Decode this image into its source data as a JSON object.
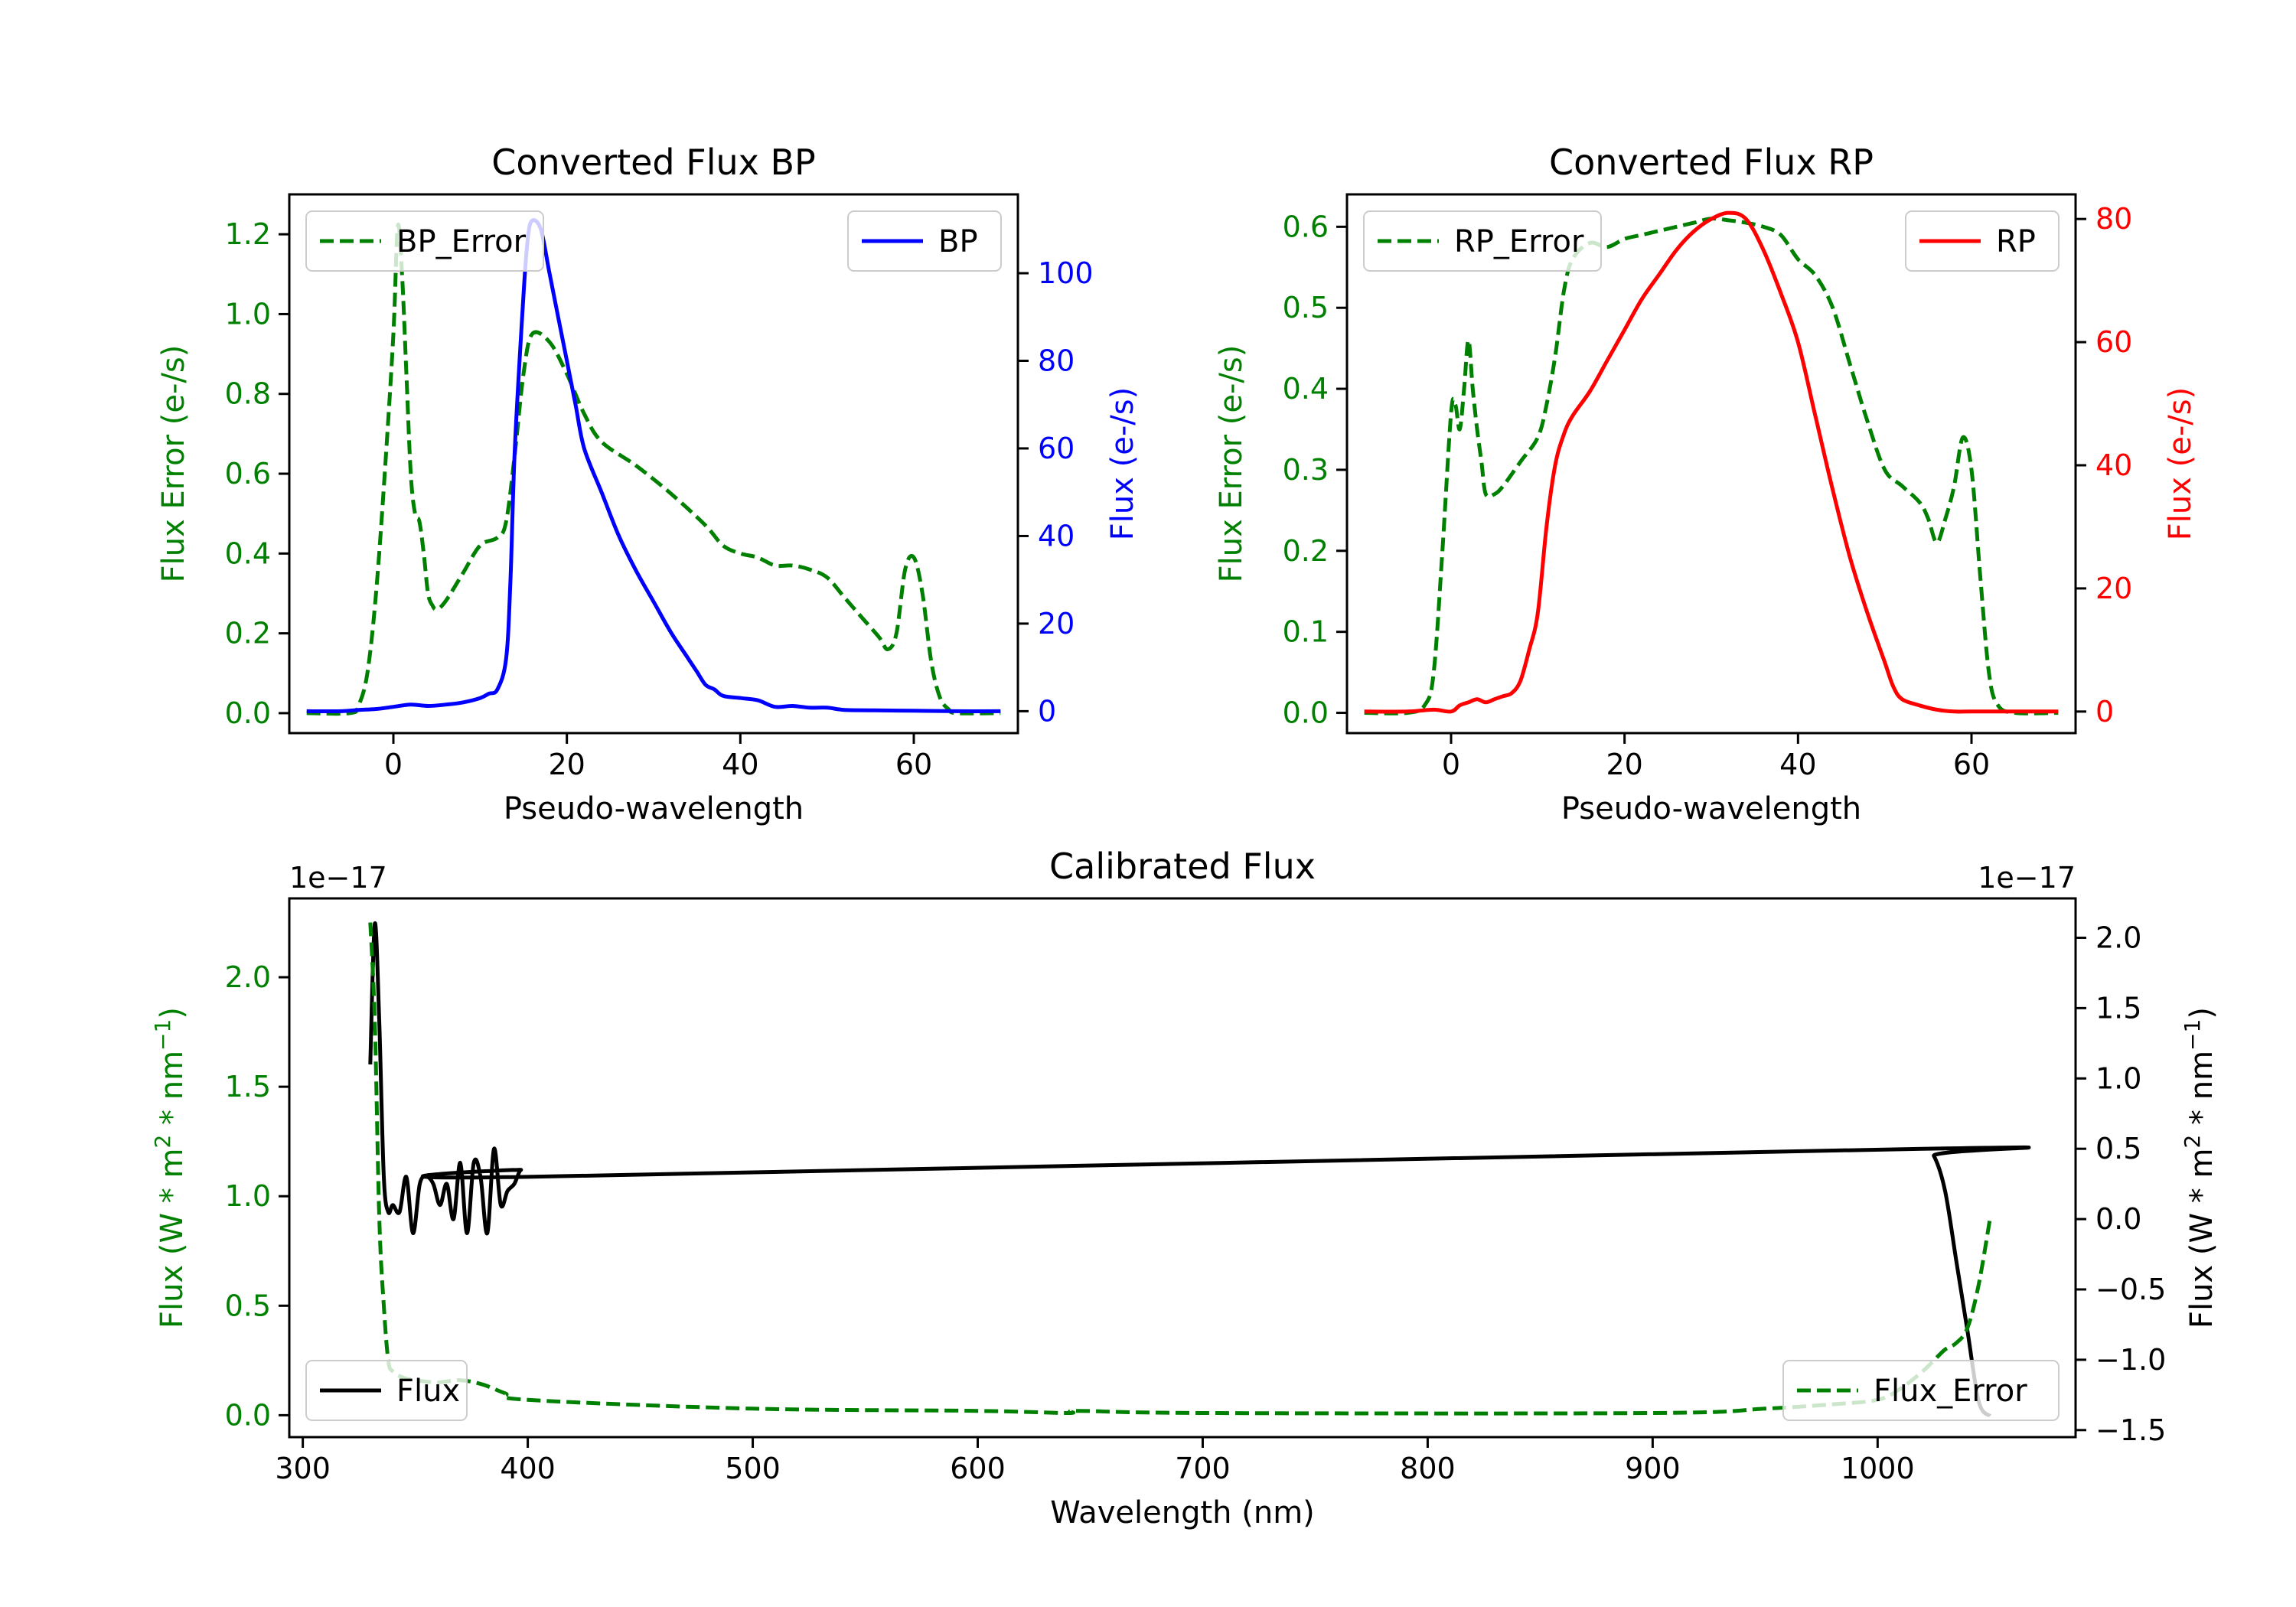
{
  "chart_data": [
    {
      "type": "line",
      "title": "Converted Flux BP",
      "xlabel": "Pseudo-wavelength",
      "ylabel_left": "Flux Error (e-/s)",
      "ylabel_right": "Flux (e-/s)",
      "xlim": [
        -12,
        72
      ],
      "ylim_left": [
        -0.05,
        1.3
      ],
      "ylim_right": [
        -5,
        118
      ],
      "x_ticks": [
        0,
        20,
        40,
        60
      ],
      "y_left_ticks": [
        0.0,
        0.2,
        0.4,
        0.6,
        0.8,
        1.0,
        1.2
      ],
      "y_right_ticks": [
        0,
        20,
        40,
        60,
        80,
        100
      ],
      "legend_left": "BP_Error",
      "legend_right": "BP",
      "colors": {
        "left_axis": "#008000",
        "right_axis": "#0000ff",
        "error": "#008000",
        "flux": "#0000ff"
      },
      "series": [
        {
          "name": "BP_Error",
          "axis": "left",
          "style": "dashed",
          "color": "#008000",
          "x": [
            -10,
            -5,
            -4,
            -3,
            -2,
            -1,
            0,
            0.5,
            1,
            1.5,
            2,
            2.5,
            3,
            3.5,
            4,
            4.5,
            5,
            6,
            8,
            10,
            12,
            13,
            14,
            15,
            16,
            18,
            20,
            22,
            24,
            28,
            32,
            36,
            38,
            40,
            42,
            44,
            46,
            48,
            50,
            52,
            54,
            56,
            57,
            58,
            59,
            60,
            61,
            62,
            63,
            64,
            65,
            70
          ],
          "y": [
            0.0,
            0.0,
            0.02,
            0.1,
            0.3,
            0.6,
            0.95,
            1.22,
            1.1,
            0.85,
            0.6,
            0.5,
            0.48,
            0.4,
            0.3,
            0.27,
            0.26,
            0.28,
            0.35,
            0.42,
            0.44,
            0.48,
            0.65,
            0.85,
            0.95,
            0.93,
            0.85,
            0.75,
            0.68,
            0.62,
            0.55,
            0.47,
            0.42,
            0.4,
            0.39,
            0.37,
            0.37,
            0.36,
            0.34,
            0.29,
            0.24,
            0.19,
            0.16,
            0.2,
            0.36,
            0.39,
            0.3,
            0.13,
            0.04,
            0.01,
            0.0,
            0.0
          ]
        },
        {
          "name": "BP",
          "axis": "right",
          "style": "solid",
          "color": "#0000ff",
          "x": [
            -10,
            -6,
            -4,
            -2,
            0,
            2,
            4,
            6,
            8,
            10,
            11,
            12,
            13,
            13.5,
            14,
            15,
            15.5,
            16,
            17,
            18,
            19,
            20,
            21,
            22,
            24,
            26,
            28,
            30,
            32,
            34,
            35,
            36,
            37,
            38,
            40,
            42,
            44,
            46,
            48,
            50,
            52,
            55,
            60,
            65,
            70
          ],
          "y": [
            0,
            0,
            0.3,
            0.5,
            1,
            1.5,
            1.2,
            1.5,
            2,
            3,
            4,
            5,
            12,
            30,
            60,
            95,
            108,
            112,
            110,
            100,
            90,
            80,
            70,
            60,
            50,
            40,
            32,
            25,
            18,
            12,
            9,
            6,
            5,
            3.5,
            3,
            2.5,
            1,
            1.2,
            0.8,
            0.8,
            0.3,
            0.2,
            0.1,
            0,
            0
          ]
        }
      ]
    },
    {
      "type": "line",
      "title": "Converted Flux RP",
      "xlabel": "Pseudo-wavelength",
      "ylabel_left": "Flux Error (e-/s)",
      "ylabel_right": "Flux (e-/s)",
      "xlim": [
        -12,
        72
      ],
      "ylim_left": [
        -0.025,
        0.64
      ],
      "ylim_right": [
        -3.5,
        84
      ],
      "x_ticks": [
        0,
        20,
        40,
        60
      ],
      "y_left_ticks": [
        0.0,
        0.1,
        0.2,
        0.3,
        0.4,
        0.5,
        0.6
      ],
      "y_right_ticks": [
        0,
        20,
        40,
        60,
        80
      ],
      "legend_left": "RP_Error",
      "legend_right": "RP",
      "colors": {
        "left_axis": "#008000",
        "right_axis": "#ff0000",
        "error": "#008000",
        "flux": "#ff0000"
      },
      "series": [
        {
          "name": "RP_Error",
          "axis": "left",
          "style": "dashed",
          "color": "#008000",
          "x": [
            -10,
            -5,
            -3,
            -2,
            -1,
            0,
            0.5,
            1,
            1.5,
            2,
            2.5,
            3,
            3.5,
            4,
            5,
            6,
            8,
            10,
            11,
            12,
            13,
            14,
            16,
            18,
            20,
            22,
            24,
            26,
            28,
            30,
            32,
            34,
            36,
            38,
            40,
            42,
            44,
            46,
            48,
            50,
            52,
            54,
            55,
            56,
            57,
            58,
            59,
            60,
            61,
            62,
            63,
            65,
            70
          ],
          "y": [
            0.0,
            0.0,
            0.01,
            0.05,
            0.2,
            0.37,
            0.38,
            0.35,
            0.4,
            0.46,
            0.4,
            0.35,
            0.31,
            0.27,
            0.27,
            0.28,
            0.31,
            0.34,
            0.38,
            0.44,
            0.52,
            0.56,
            0.58,
            0.575,
            0.585,
            0.59,
            0.595,
            0.6,
            0.605,
            0.61,
            0.608,
            0.605,
            0.6,
            0.59,
            0.56,
            0.54,
            0.5,
            0.43,
            0.36,
            0.3,
            0.28,
            0.26,
            0.24,
            0.21,
            0.24,
            0.28,
            0.34,
            0.3,
            0.17,
            0.05,
            0.01,
            0.0,
            0.0
          ]
        },
        {
          "name": "RP",
          "axis": "right",
          "style": "solid",
          "color": "#ff0000",
          "x": [
            -10,
            -5,
            -2,
            0,
            1,
            2,
            3,
            4,
            5,
            6,
            7,
            8,
            9,
            10,
            11,
            12,
            13,
            14,
            16,
            18,
            20,
            22,
            24,
            26,
            28,
            30,
            32,
            34,
            36,
            38,
            40,
            42,
            44,
            46,
            48,
            50,
            51,
            52,
            54,
            56,
            58,
            60,
            65,
            70
          ],
          "y": [
            0,
            0,
            0.3,
            0,
            1.0,
            1.5,
            2.0,
            1.5,
            2.0,
            2.5,
            3,
            5,
            10,
            16,
            30,
            40,
            45,
            48,
            52,
            57,
            62,
            67,
            71,
            75,
            78,
            80,
            81,
            80,
            75,
            68,
            60,
            48,
            36,
            25,
            16,
            8,
            4,
            2,
            1,
            0.3,
            0,
            0,
            0,
            0
          ]
        }
      ]
    },
    {
      "type": "line",
      "title": "Calibrated Flux",
      "xlabel": "Wavelength (nm)",
      "ylabel_left": "Flux (W * m",
      "ylabel_left_unit": "2",
      "ylabel_left_mid": " * nm",
      "ylabel_left_exp": "−1",
      "ylabel_left_end": ")",
      "offset_left": "1e−17",
      "offset_right": "1e−17",
      "xlim": [
        294,
        1088
      ],
      "ylim_left": [
        -0.1,
        2.36
      ],
      "ylim_right": [
        -1.55,
        2.28
      ],
      "x_ticks": [
        300,
        400,
        500,
        600,
        700,
        800,
        900,
        1000
      ],
      "y_left_ticks": [
        0.0,
        0.5,
        1.0,
        1.5,
        2.0
      ],
      "y_right_ticks": [
        -1.5,
        -1.0,
        -0.5,
        0.0,
        0.5,
        1.0,
        1.5,
        2.0
      ],
      "legend_left": "Flux",
      "legend_right": "Flux_Error",
      "colors": {
        "left_axis": "#008000",
        "right_axis": "#000000",
        "error": "#008000",
        "flux": "#000000"
      },
      "series": [
        {
          "name": "Flux",
          "axis": "right",
          "style": "solid",
          "color": "#000000",
          "x": [
            330,
            332,
            334,
            336,
            338,
            340,
            343,
            346,
            349,
            352,
            355,
            358,
            361,
            364,
            367,
            370,
            373,
            376,
            379,
            382,
            385,
            388,
            391,
            394,
            397,
            400,
            1020,
            1025,
            1030,
            1035,
            1040,
            1045,
            1050
          ],
          "y": [
            1.1,
            2.1,
            1.4,
            0.3,
            0.05,
            0.1,
            0.05,
            0.3,
            -0.1,
            0.25,
            0.3,
            0.25,
            0.1,
            0.25,
            0.0,
            0.4,
            -0.1,
            0.4,
            0.3,
            -0.1,
            0.5,
            0.1,
            0.2,
            0.25,
            0.35,
            0.3,
            0.5,
            0.45,
            0.2,
            -0.3,
            -0.8,
            -1.3,
            -1.4
          ]
        },
        {
          "name": "Flux_Error",
          "axis": "left",
          "style": "dashed",
          "color": "#008000",
          "x": [
            330,
            332,
            334,
            336,
            338,
            340,
            345,
            350,
            360,
            370,
            380,
            390,
            400,
            500,
            600,
            640,
            645,
            700,
            900,
            950,
            980,
            1000,
            1010,
            1020,
            1025,
            1030,
            1035,
            1040,
            1045,
            1050
          ],
          "y": [
            2.25,
            1.8,
            0.9,
            0.5,
            0.25,
            0.2,
            0.17,
            0.16,
            0.15,
            0.16,
            0.14,
            0.1,
            0.07,
            0.03,
            0.02,
            0.01,
            0.02,
            0.01,
            0.01,
            0.03,
            0.05,
            0.07,
            0.12,
            0.2,
            0.25,
            0.3,
            0.33,
            0.4,
            0.6,
            0.9
          ]
        }
      ]
    }
  ]
}
